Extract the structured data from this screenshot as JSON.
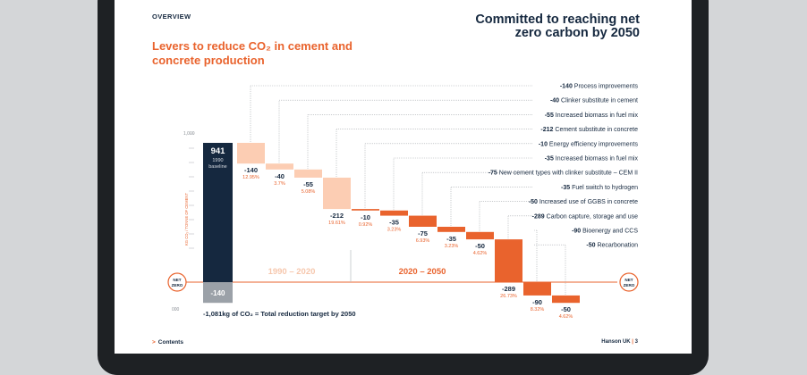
{
  "page": {
    "section": "OVERVIEW",
    "headline": "Committed to reaching net zero carbon by 2050",
    "footer_link": "Contents",
    "footer_page": "Hanson UK",
    "footer_page_number": "3"
  },
  "colors": {
    "navy": "#15283f",
    "orange": "#e9632d",
    "peach": "#fccdb3",
    "grey": "#9ba1a8",
    "bg": "#d4d6d8"
  },
  "chart_data": {
    "type": "bar",
    "title": "Levers to reduce CO₂ in cement and concrete production",
    "ylabel": "KG CO₂ / TONNE OF CEMENT",
    "yticks": [
      "1,000",
      "000"
    ],
    "ylim": [
      -300,
      1100
    ],
    "baseline": {
      "value": 941,
      "label": "1990",
      "sublabel": "baseline",
      "below_zero": -140,
      "below_label": "-140"
    },
    "periods": [
      "1990 – 2020",
      "2020 – 2050"
    ],
    "net_zero_label": "NET ZERO",
    "total_note": "-1,081kg of CO₂ = Total reduction target by 2050",
    "levers": [
      {
        "value": -140,
        "label": "-140",
        "pct": "12.95%",
        "period": "1990 – 2020",
        "legend_value": "-140",
        "legend_text": "Process improvements"
      },
      {
        "value": -40,
        "label": "-40",
        "pct": "3.7%",
        "period": "1990 – 2020",
        "legend_value": "-40",
        "legend_text": "Clinker substitute in cement"
      },
      {
        "value": -55,
        "label": "-55",
        "pct": "5.08%",
        "period": "1990 – 2020",
        "legend_value": "-55",
        "legend_text": "Increased biomass in fuel mix"
      },
      {
        "value": -212,
        "label": "-212",
        "pct": "19.61%",
        "period": "1990 – 2020",
        "legend_value": "-212",
        "legend_text": "Cement substitute in concrete"
      },
      {
        "value": -10,
        "label": "-10",
        "pct": "0.92%",
        "period": "2020 – 2050",
        "legend_value": "-10",
        "legend_text": "Energy efficiency improvements"
      },
      {
        "value": -35,
        "label": "-35",
        "pct": "3.23%",
        "period": "2020 – 2050",
        "legend_value": "-35",
        "legend_text": "Increased biomass in fuel mix"
      },
      {
        "value": -75,
        "label": "-75",
        "pct": "6.93%",
        "period": "2020 – 2050",
        "legend_value": "-75",
        "legend_text": "New cement types with clinker substitute – CEM II"
      },
      {
        "value": -35,
        "label": "-35",
        "pct": "3.23%",
        "period": "2020 – 2050",
        "legend_value": "-35",
        "legend_text": "Fuel switch to hydrogen"
      },
      {
        "value": -50,
        "label": "-50",
        "pct": "4.62%",
        "period": "2020 – 2050",
        "legend_value": "-50",
        "legend_text": "Increased use of GGBS in concrete"
      },
      {
        "value": -289,
        "label": "-289",
        "pct": "26.73%",
        "period": "2020 – 2050",
        "legend_value": "-289",
        "legend_text": "Carbon capture, storage and use"
      },
      {
        "value": -90,
        "label": "-90",
        "pct": "8.32%",
        "period": "2020 – 2050",
        "legend_value": "-90",
        "legend_text": "Bioenergy and CCS"
      },
      {
        "value": -50,
        "label": "-50",
        "pct": "4.62%",
        "period": "2020 – 2050",
        "legend_value": "-50",
        "legend_text": "Recarbonation"
      }
    ]
  }
}
